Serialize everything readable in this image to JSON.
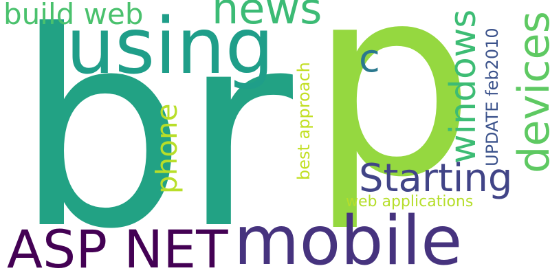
{
  "words": [
    {
      "key": "br",
      "text": "br",
      "color": "#22a284"
    },
    {
      "key": "p",
      "text": "p",
      "color": "#95d840"
    },
    {
      "key": "using",
      "text": "using",
      "color": "#1f9e89"
    },
    {
      "key": "news",
      "text": "news",
      "color": "#3cbb75"
    },
    {
      "key": "build_web",
      "text": "build web",
      "color": "#4ac16d"
    },
    {
      "key": "c",
      "text": "c",
      "color": "#2a788e"
    },
    {
      "key": "phone",
      "text": "phone",
      "color": "#b8de29"
    },
    {
      "key": "best_approach",
      "text": "best approach",
      "color": "#c2df23"
    },
    {
      "key": "windows",
      "text": "windows",
      "color": "#3dbc74"
    },
    {
      "key": "update_feb2010",
      "text": "UPDATE feb2010",
      "color": "#3b528b"
    },
    {
      "key": "devices",
      "text": "devices",
      "color": "#5ec962"
    },
    {
      "key": "starting",
      "text": "Starting",
      "color": "#414487"
    },
    {
      "key": "web_applications",
      "text": "web applications",
      "color": "#b5de2b"
    },
    {
      "key": "asp_net",
      "text": "ASP NET",
      "color": "#440154"
    },
    {
      "key": "mobile",
      "text": "mobile",
      "color": "#46337e"
    }
  ]
}
